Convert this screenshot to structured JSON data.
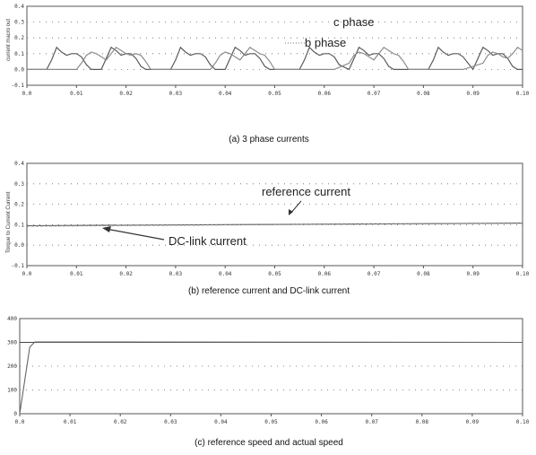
{
  "chart_data": [
    {
      "type": "line",
      "ylabel": "current macro out",
      "caption": "(a) 3 phase currents",
      "xlim": [
        0,
        0.1
      ],
      "ylim": [
        -0.1,
        0.4
      ],
      "x_ticks": [
        "0.0",
        "0.01",
        "0.02",
        "0.03",
        "0.04",
        "0.05",
        "0.06",
        "0.07",
        "0.08",
        "0.09",
        "0.10"
      ],
      "y_ticks": [
        "-0.1",
        "0.0",
        "0.1",
        "0.2",
        "0.3",
        "0.4"
      ],
      "annotations": [
        "c phase",
        "b phase"
      ],
      "grid": "dotted",
      "series": [
        {
          "name": "c phase",
          "color": "#5a5a5a",
          "x": [
            0.0,
            0.004,
            0.005,
            0.006,
            0.007,
            0.008,
            0.009,
            0.01,
            0.011,
            0.012,
            0.013,
            0.015,
            0.016,
            0.017,
            0.018,
            0.019,
            0.02,
            0.021,
            0.022,
            0.023,
            0.024,
            0.027,
            0.029,
            0.03,
            0.031,
            0.032,
            0.033,
            0.034,
            0.035,
            0.036,
            0.037,
            0.038,
            0.04,
            0.041,
            0.042,
            0.043,
            0.044,
            0.045,
            0.046,
            0.047,
            0.048,
            0.049,
            0.052,
            0.055,
            0.056,
            0.057,
            0.058,
            0.059,
            0.06,
            0.061,
            0.062,
            0.063,
            0.065,
            0.066,
            0.067,
            0.068,
            0.069,
            0.07,
            0.071,
            0.072,
            0.073,
            0.074,
            0.077,
            0.081,
            0.082,
            0.083,
            0.084,
            0.085,
            0.086,
            0.087,
            0.088,
            0.09,
            0.091,
            0.092,
            0.093,
            0.094,
            0.095,
            0.096,
            0.097,
            0.098,
            0.099,
            0.1
          ],
          "y": [
            0.0,
            0.0,
            0.06,
            0.14,
            0.11,
            0.09,
            0.1,
            0.1,
            0.08,
            0.03,
            0.0,
            0.0,
            0.07,
            0.14,
            0.12,
            0.09,
            0.1,
            0.1,
            0.07,
            0.02,
            0.0,
            0.0,
            0.0,
            0.06,
            0.14,
            0.11,
            0.09,
            0.1,
            0.1,
            0.08,
            0.03,
            0.0,
            0.0,
            0.07,
            0.14,
            0.12,
            0.09,
            0.1,
            0.1,
            0.07,
            0.02,
            0.0,
            0.0,
            0.0,
            0.06,
            0.14,
            0.11,
            0.09,
            0.1,
            0.1,
            0.08,
            0.03,
            0.0,
            0.07,
            0.14,
            0.12,
            0.09,
            0.1,
            0.1,
            0.07,
            0.02,
            0.0,
            0.0,
            0.0,
            0.06,
            0.14,
            0.11,
            0.09,
            0.1,
            0.1,
            0.08,
            0.0,
            0.07,
            0.14,
            0.12,
            0.09,
            0.1,
            0.1,
            0.07,
            0.02,
            0.0,
            0.0
          ]
        },
        {
          "name": "b phase",
          "color": "#8c8c8c",
          "x": [
            0.0,
            0.01,
            0.011,
            0.012,
            0.013,
            0.014,
            0.015,
            0.016,
            0.017,
            0.018,
            0.019,
            0.02,
            0.021,
            0.022,
            0.023,
            0.024,
            0.025,
            0.028,
            0.031,
            0.034,
            0.037,
            0.038,
            0.039,
            0.04,
            0.041,
            0.042,
            0.043,
            0.044,
            0.045,
            0.046,
            0.047,
            0.048,
            0.049,
            0.05,
            0.055,
            0.058,
            0.062,
            0.065,
            0.066,
            0.067,
            0.068,
            0.069,
            0.07,
            0.071,
            0.072,
            0.073,
            0.074,
            0.075,
            0.076,
            0.077,
            0.082,
            0.088,
            0.092,
            0.093,
            0.094,
            0.095,
            0.096,
            0.097,
            0.098,
            0.099,
            0.1
          ],
          "y": [
            0.0,
            0.0,
            0.04,
            0.09,
            0.11,
            0.1,
            0.08,
            0.06,
            0.1,
            0.14,
            0.12,
            0.1,
            0.09,
            0.1,
            0.09,
            0.05,
            0.0,
            0.0,
            0.0,
            0.0,
            0.0,
            0.04,
            0.09,
            0.11,
            0.1,
            0.08,
            0.06,
            0.1,
            0.14,
            0.12,
            0.1,
            0.09,
            0.05,
            0.0,
            0.0,
            0.0,
            0.0,
            0.04,
            0.09,
            0.11,
            0.1,
            0.08,
            0.06,
            0.1,
            0.14,
            0.12,
            0.1,
            0.09,
            0.05,
            0.0,
            0.0,
            0.0,
            0.04,
            0.09,
            0.11,
            0.1,
            0.08,
            0.07,
            0.1,
            0.14,
            0.12
          ]
        }
      ]
    },
    {
      "type": "line",
      "ylabel": "Torque to Current Current",
      "caption": "(b) reference current and DC-link current",
      "xlim": [
        0,
        0.1
      ],
      "ylim": [
        -0.1,
        0.4
      ],
      "x_ticks": [
        "0.0",
        "0.01",
        "0.02",
        "0.03",
        "0.04",
        "0.05",
        "0.06",
        "0.07",
        "0.08",
        "0.09",
        "0.10"
      ],
      "y_ticks": [
        "-0.1",
        "0.0",
        "0.1",
        "0.2",
        "0.3",
        "0.4"
      ],
      "annotations": [
        "reference current",
        "DC-link current"
      ],
      "grid": "dotted",
      "series": [
        {
          "name": "reference current",
          "color": "#555555",
          "x": [
            0.0,
            0.1
          ],
          "y": [
            0.095,
            0.108
          ]
        },
        {
          "name": "DC-link current",
          "color": "#888888",
          "x": [
            0.0,
            0.02,
            0.04,
            0.06,
            0.08,
            0.1
          ],
          "y": [
            0.093,
            0.096,
            0.099,
            0.102,
            0.104,
            0.107
          ]
        }
      ]
    },
    {
      "type": "line",
      "ylabel": "",
      "caption": "(c) reference speed and actual speed",
      "xlim": [
        0,
        0.1
      ],
      "ylim": [
        0,
        400
      ],
      "x_ticks": [
        "0.0",
        "0.01",
        "0.02",
        "0.03",
        "0.04",
        "0.05",
        "0.06",
        "0.07",
        "0.08",
        "0.09",
        "0.10"
      ],
      "y_ticks": [
        "0",
        "100",
        "200",
        "300",
        "400"
      ],
      "grid": "dotted",
      "series": [
        {
          "name": "reference speed",
          "color": "#444444",
          "x": [
            0.0,
            0.1
          ],
          "y": [
            300,
            300
          ]
        },
        {
          "name": "actual speed",
          "color": "#666666",
          "x": [
            0.0,
            0.002,
            0.003,
            0.1
          ],
          "y": [
            0,
            280,
            302,
            300
          ]
        }
      ]
    }
  ]
}
